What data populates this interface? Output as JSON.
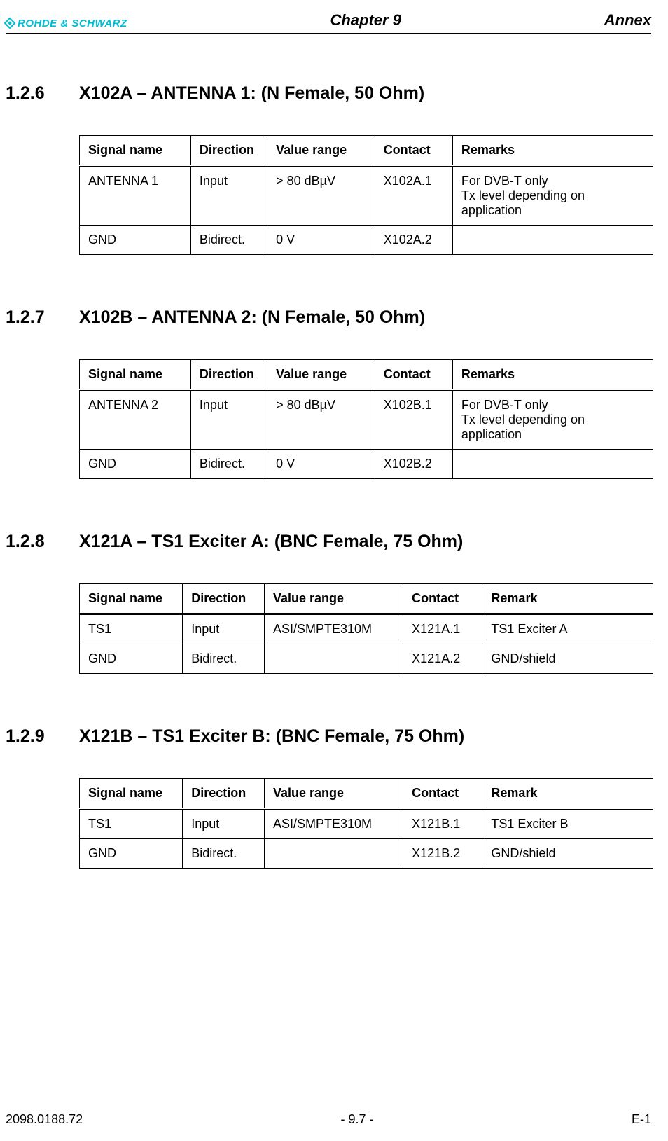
{
  "header": {
    "logo_text": "ROHDE & SCHWARZ",
    "chapter": "Chapter 9",
    "annex": "Annex"
  },
  "sections": {
    "s1": {
      "number": "1.2.6",
      "title": "X102A – ANTENNA 1: (N Female, 50 Ohm)",
      "columns": [
        "Signal name",
        "Direction",
        "Value range",
        "Contact",
        "Remarks"
      ],
      "col_widths": [
        "150px",
        "100px",
        "145px",
        "105px",
        "270px"
      ],
      "rows": [
        [
          "ANTENNA 1",
          "Input",
          "> 80 dBµV",
          "X102A.1",
          "For DVB-T only\nTx level depending on application"
        ],
        [
          "GND",
          "Bidirect.",
          "0 V",
          "X102A.2",
          ""
        ]
      ]
    },
    "s2": {
      "number": "1.2.7",
      "title": "X102B – ANTENNA 2: (N Female, 50 Ohm)",
      "columns": [
        "Signal name",
        "Direction",
        "Value range",
        "Contact",
        "Remarks"
      ],
      "col_widths": [
        "150px",
        "100px",
        "145px",
        "105px",
        "270px"
      ],
      "rows": [
        [
          "ANTENNA 2",
          "Input",
          "> 80 dBµV",
          "X102B.1",
          "For DVB-T only\nTx level depending on application"
        ],
        [
          "GND",
          "Bidirect.",
          "0 V",
          "X102B.2",
          ""
        ]
      ]
    },
    "s3": {
      "number": "1.2.8",
      "title": "X121A – TS1 Exciter A: (BNC Female, 75 Ohm)",
      "columns": [
        "Signal name",
        "Direction",
        "Value range",
        "Contact",
        "Remark"
      ],
      "col_widths": [
        "130px",
        "100px",
        "175px",
        "100px",
        "215px"
      ],
      "rows": [
        [
          "TS1",
          "Input",
          "ASI/SMPTE310M",
          "X121A.1",
          "TS1 Exciter A"
        ],
        [
          "GND",
          "Bidirect.",
          "",
          "X121A.2",
          "GND/shield"
        ]
      ]
    },
    "s4": {
      "number": "1.2.9",
      "title": "X121B – TS1 Exciter B: (BNC Female, 75 Ohm)",
      "columns": [
        "Signal name",
        "Direction",
        "Value range",
        "Contact",
        "Remark"
      ],
      "col_widths": [
        "130px",
        "100px",
        "175px",
        "100px",
        "215px"
      ],
      "rows": [
        [
          "TS1",
          "Input",
          "ASI/SMPTE310M",
          "X121B.1",
          "TS1 Exciter B"
        ],
        [
          "GND",
          "Bidirect.",
          "",
          "X121B.2",
          "GND/shield"
        ]
      ]
    }
  },
  "footer": {
    "left": "2098.0188.72",
    "center": "- 9.7 -",
    "right": "E-1"
  },
  "style": {
    "logo_color": "#00bcd4",
    "text_color": "#000000",
    "border_color": "#000000",
    "heading_fontsize": 25,
    "body_fontsize": 18
  }
}
